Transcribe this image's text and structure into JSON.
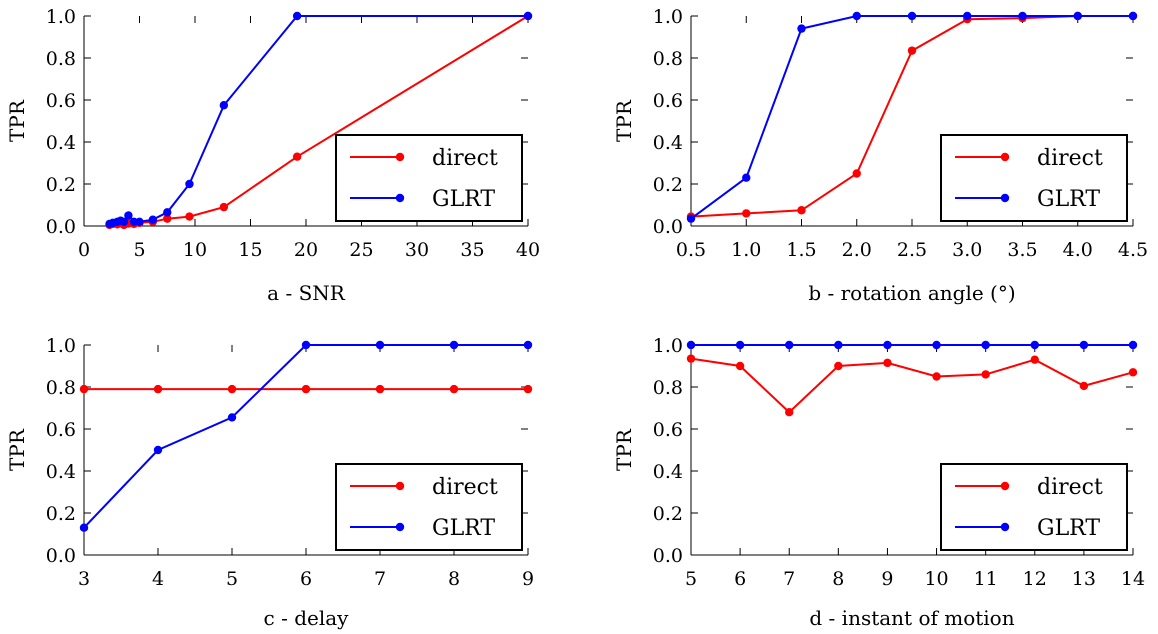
{
  "colors": {
    "direct": "#ff0000",
    "GLRT": "#0000ff"
  },
  "chart_data": [
    {
      "type": "line",
      "xlabel": "a - SNR",
      "ylabel": "TPR",
      "xlim": [
        0,
        40
      ],
      "ylim": [
        0,
        1
      ],
      "xticks": [
        "0",
        "5",
        "10",
        "15",
        "20",
        "25",
        "30",
        "35",
        "40"
      ],
      "xtick_values": [
        0,
        5,
        10,
        15,
        20,
        25,
        30,
        35,
        40
      ],
      "yticks": [
        "0.0",
        "0.2",
        "0.4",
        "0.6",
        "0.8",
        "1.0"
      ],
      "ytick_values": [
        0,
        0.2,
        0.4,
        0.6,
        0.8,
        1.0
      ],
      "legend_position": "lower-right",
      "grid": false,
      "series": [
        {
          "name": "direct",
          "color": "#ff0000",
          "x": [
            2.3,
            2.6,
            3.0,
            3.3,
            3.6,
            4.0,
            4.5,
            5.0,
            6.2,
            7.5,
            9.5,
            12.6,
            19.2,
            40
          ],
          "y": [
            0.005,
            0.01,
            0.008,
            0.015,
            0.005,
            0.012,
            0.01,
            0.015,
            0.02,
            0.035,
            0.045,
            0.09,
            0.33,
            1.0
          ]
        },
        {
          "name": "GLRT",
          "color": "#0000ff",
          "x": [
            2.3,
            2.6,
            3.0,
            3.3,
            3.6,
            4.0,
            4.5,
            5.0,
            6.2,
            7.5,
            9.5,
            12.6,
            19.2,
            40
          ],
          "y": [
            0.01,
            0.015,
            0.02,
            0.025,
            0.02,
            0.05,
            0.02,
            0.02,
            0.03,
            0.065,
            0.2,
            0.575,
            1.0,
            1.0
          ]
        }
      ]
    },
    {
      "type": "line",
      "xlabel": "b - rotation angle (°)",
      "ylabel": "TPR",
      "xlim": [
        0.5,
        4.5
      ],
      "ylim": [
        0,
        1
      ],
      "xticks": [
        "0.5",
        "1.0",
        "1.5",
        "2.0",
        "2.5",
        "3.0",
        "3.5",
        "4.0",
        "4.5"
      ],
      "xtick_values": [
        0.5,
        1.0,
        1.5,
        2.0,
        2.5,
        3.0,
        3.5,
        4.0,
        4.5
      ],
      "yticks": [
        "0.0",
        "0.2",
        "0.4",
        "0.6",
        "0.8",
        "1.0"
      ],
      "ytick_values": [
        0,
        0.2,
        0.4,
        0.6,
        0.8,
        1.0
      ],
      "legend_position": "lower-right",
      "grid": false,
      "series": [
        {
          "name": "direct",
          "color": "#ff0000",
          "x": [
            0.5,
            1.0,
            1.5,
            2.0,
            2.5,
            3.0,
            3.5,
            4.0,
            4.5
          ],
          "y": [
            0.045,
            0.06,
            0.075,
            0.25,
            0.835,
            0.985,
            0.99,
            1.0,
            1.0
          ]
        },
        {
          "name": "GLRT",
          "color": "#0000ff",
          "x": [
            0.5,
            1.0,
            1.5,
            2.0,
            2.5,
            3.0,
            3.5,
            4.0,
            4.5
          ],
          "y": [
            0.035,
            0.23,
            0.94,
            1.0,
            1.0,
            1.0,
            1.0,
            1.0,
            1.0
          ]
        }
      ]
    },
    {
      "type": "line",
      "xlabel": "c - delay",
      "ylabel": "TPR",
      "xlim": [
        3,
        9
      ],
      "ylim": [
        0,
        1
      ],
      "xticks": [
        "3",
        "4",
        "5",
        "6",
        "7",
        "8",
        "9"
      ],
      "xtick_values": [
        3,
        4,
        5,
        6,
        7,
        8,
        9
      ],
      "yticks": [
        "0.0",
        "0.2",
        "0.4",
        "0.6",
        "0.8",
        "1.0"
      ],
      "ytick_values": [
        0,
        0.2,
        0.4,
        0.6,
        0.8,
        1.0
      ],
      "legend_position": "lower-right",
      "grid": false,
      "series": [
        {
          "name": "direct",
          "color": "#ff0000",
          "x": [
            3,
            4,
            5,
            6,
            7,
            8,
            9
          ],
          "y": [
            0.79,
            0.79,
            0.79,
            0.79,
            0.79,
            0.79,
            0.79
          ]
        },
        {
          "name": "GLRT",
          "color": "#0000ff",
          "x": [
            3,
            4,
            5,
            6,
            7,
            8,
            9
          ],
          "y": [
            0.13,
            0.5,
            0.655,
            1.0,
            1.0,
            1.0,
            1.0
          ]
        }
      ]
    },
    {
      "type": "line",
      "xlabel": "d - instant of motion",
      "ylabel": "TPR",
      "xlim": [
        5,
        14
      ],
      "ylim": [
        0,
        1
      ],
      "xticks": [
        "5",
        "6",
        "7",
        "8",
        "9",
        "10",
        "11",
        "12",
        "13",
        "14"
      ],
      "xtick_values": [
        5,
        6,
        7,
        8,
        9,
        10,
        11,
        12,
        13,
        14
      ],
      "yticks": [
        "0.0",
        "0.2",
        "0.4",
        "0.6",
        "0.8",
        "1.0"
      ],
      "ytick_values": [
        0,
        0.2,
        0.4,
        0.6,
        0.8,
        1.0
      ],
      "legend_position": "lower-right",
      "grid": false,
      "series": [
        {
          "name": "direct",
          "color": "#ff0000",
          "x": [
            5,
            6,
            7,
            8,
            9,
            10,
            11,
            12,
            13,
            14
          ],
          "y": [
            0.935,
            0.9,
            0.68,
            0.9,
            0.915,
            0.85,
            0.86,
            0.93,
            0.805,
            0.87
          ]
        },
        {
          "name": "GLRT",
          "color": "#0000ff",
          "x": [
            5,
            6,
            7,
            8,
            9,
            10,
            11,
            12,
            13,
            14
          ],
          "y": [
            1.0,
            1.0,
            1.0,
            1.0,
            1.0,
            1.0,
            1.0,
            1.0,
            1.0,
            1.0
          ]
        }
      ]
    }
  ]
}
